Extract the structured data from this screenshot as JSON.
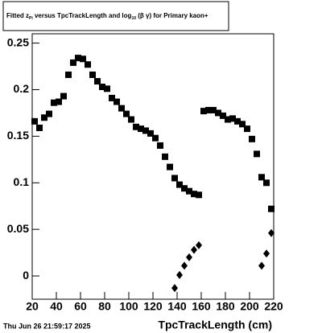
{
  "chart_data": {
    "type": "scatter",
    "title_parts": [
      "Fitted  z",
      "Pi",
      "  versus TpcTrackLength and log",
      "10",
      " (β  γ) for Primary kaon+"
    ],
    "xlabel": "TpcTrackLength (cm)",
    "date": "Thu Jun 26 21:59:17 2025",
    "xlim": [
      20,
      220
    ],
    "xticks": [
      20,
      40,
      60,
      80,
      100,
      120,
      140,
      160,
      180,
      200,
      220
    ],
    "ylim": [
      -0.025,
      0.26
    ],
    "yticks": [
      0,
      0.05,
      0.1,
      0.15,
      0.2,
      0.25
    ],
    "series": [
      {
        "marker": "square",
        "color": "#000000",
        "x": [
          22,
          26,
          30,
          34,
          38,
          42,
          46,
          50,
          54,
          58,
          62,
          66,
          70,
          74,
          78,
          82,
          86,
          90,
          94,
          98,
          102,
          106,
          110,
          114,
          118,
          122,
          126,
          130,
          134,
          138,
          142,
          146,
          150,
          154,
          158,
          162,
          166,
          170,
          174,
          178,
          182,
          186,
          190,
          194,
          198,
          202,
          206,
          210,
          214,
          218
        ],
        "values": [
          0.166,
          0.159,
          0.17,
          0.174,
          0.186,
          0.187,
          0.193,
          0.216,
          0.229,
          0.234,
          0.233,
          0.227,
          0.216,
          0.209,
          0.203,
          0.201,
          0.191,
          0.187,
          0.18,
          0.174,
          0.168,
          0.16,
          0.158,
          0.156,
          0.153,
          0.148,
          0.14,
          0.128,
          0.117,
          0.105,
          0.098,
          0.094,
          0.091,
          0.088,
          0.087,
          0.177,
          0.178,
          0.178,
          0.175,
          0.172,
          0.168,
          0.169,
          0.166,
          0.163,
          0.158,
          0.147,
          0.131,
          0.106,
          0.1,
          0.072
        ]
      },
      {
        "marker": "diamond",
        "color": "#000000",
        "x": [
          138,
          142,
          146,
          150,
          154,
          158,
          210,
          214,
          218
        ],
        "values": [
          -0.013,
          0.001,
          0.011,
          0.02,
          0.028,
          0.033,
          0.011,
          0.024,
          0.046
        ]
      }
    ]
  }
}
